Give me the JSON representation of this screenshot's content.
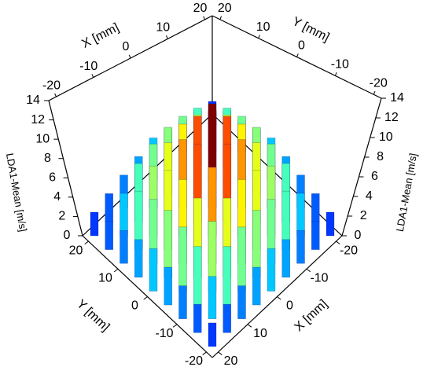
{
  "chart_data": {
    "type": "bar3d",
    "x": [
      -20,
      -15,
      -10,
      -5,
      0,
      5,
      10,
      15,
      20
    ],
    "y": [
      -20,
      -15,
      -10,
      -5,
      0,
      5,
      10,
      15,
      20
    ],
    "values": [
      [
        2.5,
        3,
        3.5,
        4,
        4.5,
        4,
        3.5,
        3,
        2.5
      ],
      [
        3,
        4.5,
        6.2,
        6.8,
        7.1,
        6.8,
        6.2,
        4.5,
        3
      ],
      [
        3.5,
        6.2,
        7.4,
        8.4,
        8.9,
        8.4,
        7.4,
        6.2,
        3.5
      ],
      [
        4,
        6.8,
        8.4,
        10.2,
        11.2,
        10.2,
        8.4,
        6.8,
        4
      ],
      [
        4.5,
        7.1,
        8.9,
        11.2,
        14,
        11.2,
        8.9,
        7.1,
        4.5
      ],
      [
        4,
        6.8,
        8.4,
        10.2,
        11.2,
        10.2,
        8.4,
        6.8,
        4
      ],
      [
        3.5,
        6.2,
        7.4,
        8.4,
        8.9,
        8.4,
        7.4,
        6.2,
        3.5
      ],
      [
        3,
        4.5,
        6.2,
        6.8,
        7.1,
        6.8,
        6.2,
        4.5,
        3
      ],
      [
        2.5,
        3,
        3.5,
        4,
        4.5,
        4,
        3.5,
        3,
        2.5
      ]
    ],
    "xlim": [
      -22,
      22
    ],
    "ylim": [
      -22,
      22
    ],
    "zlim": [
      0,
      14
    ],
    "xticks": [
      -20,
      -10,
      0,
      10,
      20
    ],
    "yticks": [
      -20,
      -10,
      0,
      10,
      20
    ],
    "zticks": [
      0,
      2,
      4,
      6,
      8,
      10,
      12,
      14
    ],
    "xlabel": "X [mm]",
    "ylabel": "Y [mm]",
    "zlabel": "LDA1-Mean [m/s]",
    "colormap": "jet"
  }
}
